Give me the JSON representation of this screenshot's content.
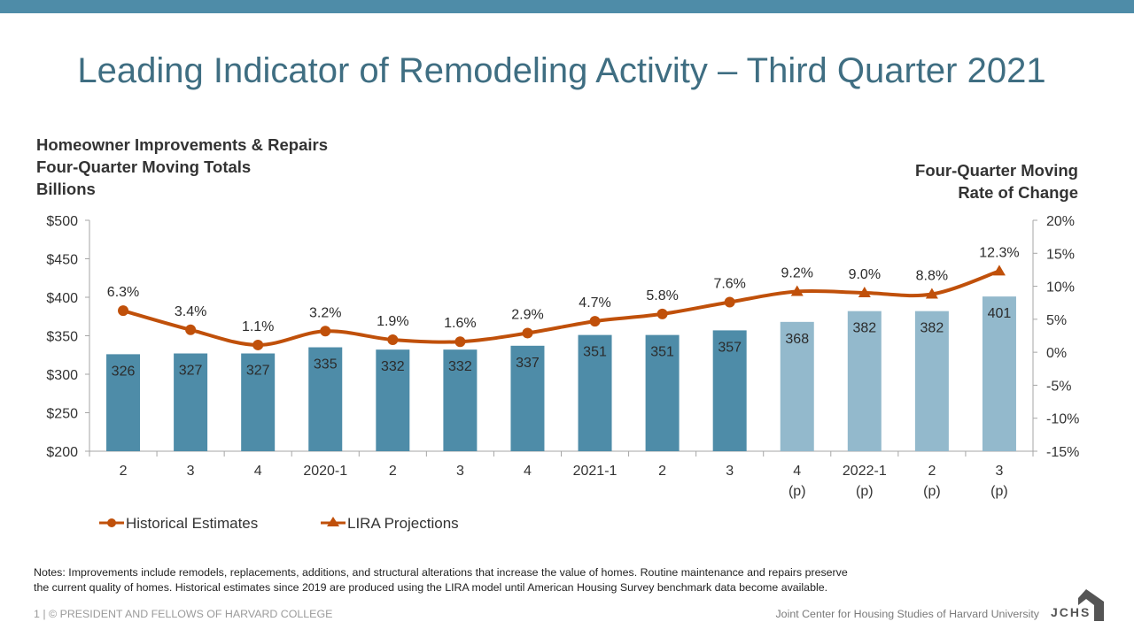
{
  "slide": {
    "title": "Leading Indicator of Remodeling Activity – Third Quarter 2021",
    "left_axis_title": [
      "Homeowner Improvements & Repairs",
      "Four-Quarter Moving Totals",
      "Billions"
    ],
    "right_axis_title": [
      "Four-Quarter Moving",
      "Rate of Change"
    ],
    "notes": [
      "Notes: Improvements include remodels, replacements, additions, and structural alterations that increase the value of homes. Routine maintenance and repairs preserve",
      "the current quality of homes. Historical estimates since 2019 are produced using the LIRA model until American Housing Survey benchmark data become available."
    ],
    "footer_left": "1 | © PRESIDENT AND FELLOWS OF HARVARD COLLEGE",
    "footer_right": "Joint Center for Housing Studies of Harvard University",
    "logo_text": "JCHS"
  },
  "colors": {
    "top_bar": "#4e8ca8",
    "title": "#3f6e82",
    "bar_historical": "#4e8ca8",
    "bar_projection": "#93b9cc",
    "line": "#c0500a"
  },
  "chart_data": {
    "type": "bar",
    "title": "Leading Indicator of Remodeling Activity – Third Quarter 2021",
    "categories": [
      {
        "label": "2",
        "sub": ""
      },
      {
        "label": "3",
        "sub": ""
      },
      {
        "label": "4",
        "sub": ""
      },
      {
        "label": "2020-1",
        "sub": ""
      },
      {
        "label": "2",
        "sub": ""
      },
      {
        "label": "3",
        "sub": ""
      },
      {
        "label": "4",
        "sub": ""
      },
      {
        "label": "2021-1",
        "sub": ""
      },
      {
        "label": "2",
        "sub": ""
      },
      {
        "label": "3",
        "sub": ""
      },
      {
        "label": "4",
        "sub": "(p)"
      },
      {
        "label": "2022-1",
        "sub": "(p)"
      },
      {
        "label": "2",
        "sub": "(p)"
      },
      {
        "label": "3",
        "sub": "(p)"
      }
    ],
    "bars": {
      "name": "Homeowner Improvements & Repairs (Billions)",
      "values": [
        326,
        327,
        327,
        335,
        332,
        332,
        337,
        351,
        351,
        357,
        368,
        382,
        382,
        401
      ],
      "projected": [
        false,
        false,
        false,
        false,
        false,
        false,
        false,
        false,
        false,
        false,
        true,
        true,
        true,
        true
      ]
    },
    "series": [
      {
        "name": "Historical Estimates",
        "marker": "circle",
        "start": 0,
        "end": 9,
        "values": [
          6.3,
          3.4,
          1.1,
          3.2,
          1.9,
          1.6,
          2.9,
          4.7,
          5.8,
          7.6
        ]
      },
      {
        "name": "LIRA Projections",
        "marker": "triangle",
        "start": 9,
        "end": 13,
        "values": [
          7.6,
          9.2,
          9.0,
          8.8,
          12.3
        ]
      }
    ],
    "rate_labels": [
      "6.3%",
      "3.4%",
      "1.1%",
      "3.2%",
      "1.9%",
      "1.6%",
      "2.9%",
      "4.7%",
      "5.8%",
      "7.6%",
      "9.2%",
      "9.0%",
      "8.8%",
      "12.3%"
    ],
    "rates": [
      6.3,
      3.4,
      1.1,
      3.2,
      1.9,
      1.6,
      2.9,
      4.7,
      5.8,
      7.6,
      9.2,
      9.0,
      8.8,
      12.3
    ],
    "ylabel": "Homeowner Improvements & Repairs Four-Quarter Moving Totals Billions",
    "y2label": "Four-Quarter Moving Rate of Change",
    "ylim": [
      200,
      500
    ],
    "y_ticks": [
      {
        "v": 500,
        "label": "$500"
      },
      {
        "v": 450,
        "label": "$450"
      },
      {
        "v": 400,
        "label": "$400"
      },
      {
        "v": 350,
        "label": "$350"
      },
      {
        "v": 300,
        "label": "$300"
      },
      {
        "v": 250,
        "label": "$250"
      },
      {
        "v": 200,
        "label": "$200"
      }
    ],
    "y2lim": [
      -15,
      20
    ],
    "y2_ticks": [
      {
        "v": 20,
        "label": "20%"
      },
      {
        "v": 15,
        "label": "15%"
      },
      {
        "v": 10,
        "label": "10%"
      },
      {
        "v": 5,
        "label": "5%"
      },
      {
        "v": 0,
        "label": "0%"
      },
      {
        "v": -5,
        "label": "-5%"
      },
      {
        "v": -10,
        "label": "-10%"
      },
      {
        "v": -15,
        "label": "-15%"
      }
    ],
    "grid": false,
    "legend": {
      "position": "bottom-left",
      "items": [
        "Historical Estimates",
        "LIRA Projections"
      ]
    }
  }
}
